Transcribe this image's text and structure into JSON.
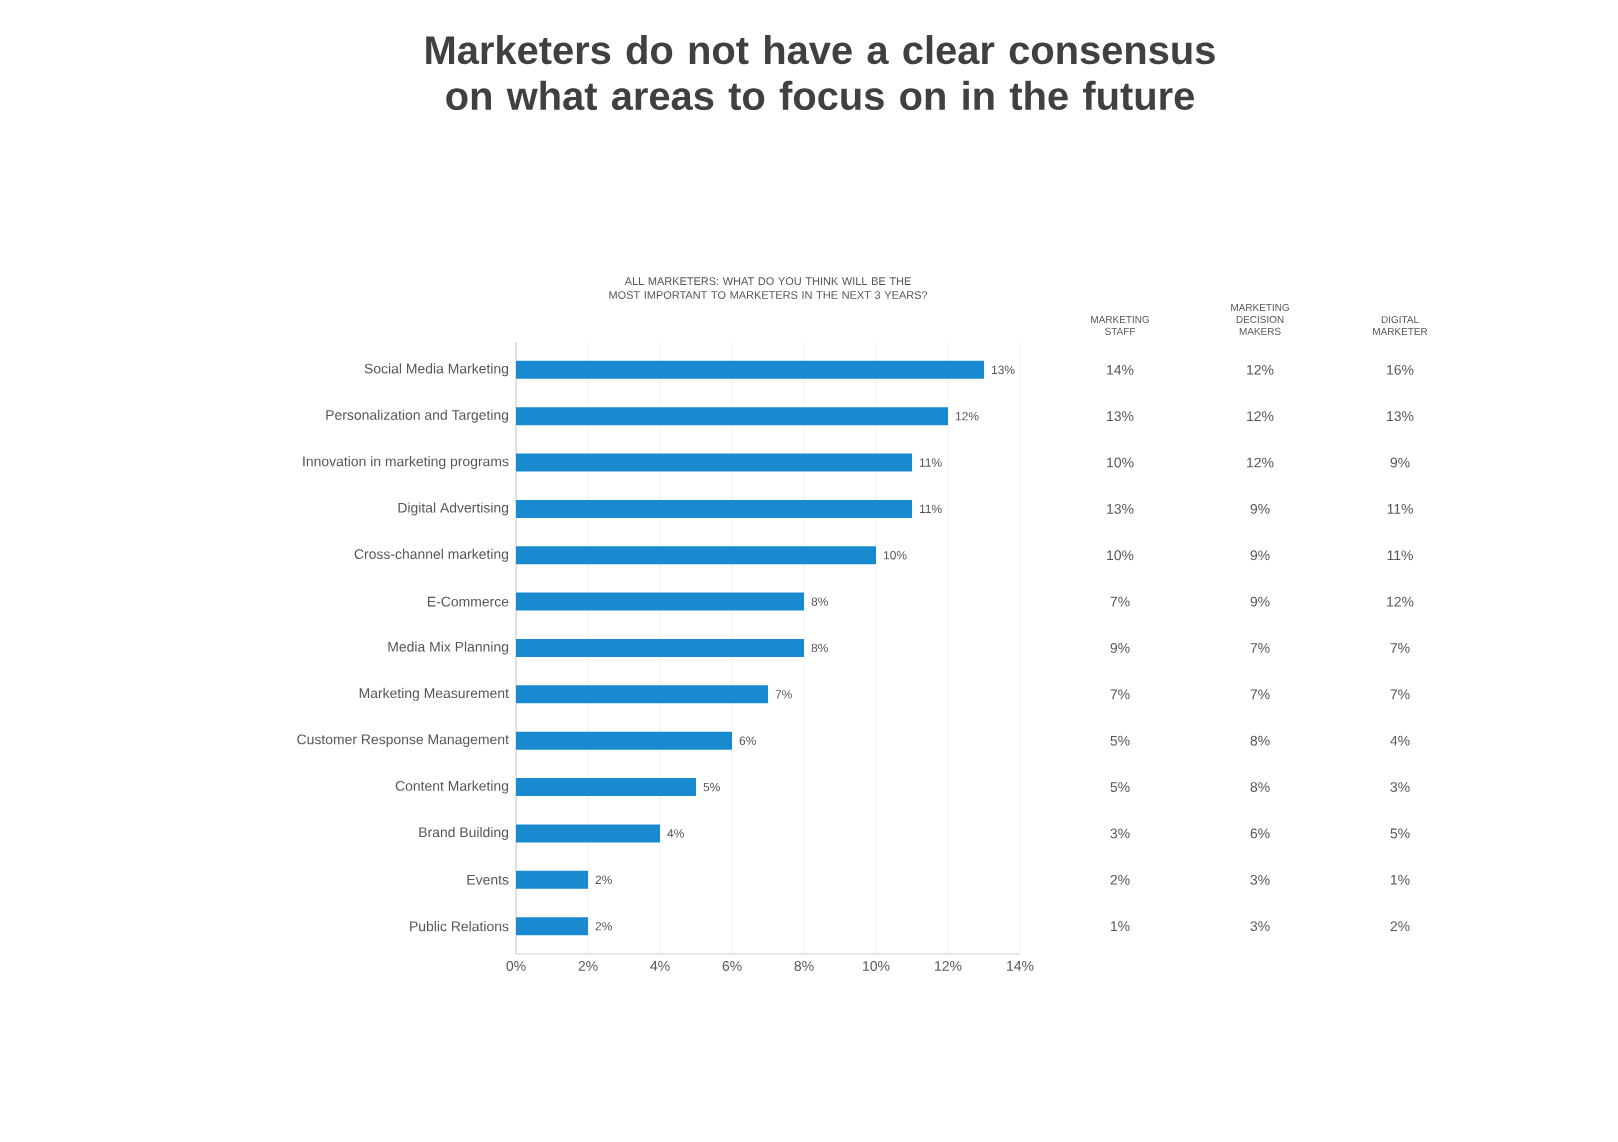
{
  "chart_data": [
    {
      "type": "bar",
      "orientation": "horizontal",
      "title": "Marketers do not have a clear consensus on what areas to focus on in the future",
      "subtitle": "ALL MARKETERS: WHAT DO YOU THINK WILL BE THE MOST IMPORTANT TO MARKETERS IN THE NEXT 3 YEARS?",
      "categories": [
        "Social Media Marketing",
        "Personalization and Targeting",
        "Innovation in marketing programs",
        "Digital Advertising",
        "Cross-channel marketing",
        "E-Commerce",
        "Media Mix Planning",
        "Marketing Measurement",
        "Customer Response Management",
        "Content Marketing",
        "Brand Building",
        "Events",
        "Public Relations"
      ],
      "values": [
        13,
        12,
        11,
        11,
        10,
        8,
        8,
        7,
        6,
        5,
        4,
        2,
        2
      ],
      "value_labels": [
        "13%",
        "12%",
        "11%",
        "11%",
        "10%",
        "8%",
        "8%",
        "7%",
        "6%",
        "5%",
        "4%",
        "2%",
        "2%"
      ],
      "color": "#1a8ad0",
      "xlim": [
        0,
        14
      ],
      "xticks": [
        {
          "value": 0,
          "label": "0%"
        },
        {
          "value": 2,
          "label": "2%"
        },
        {
          "value": 4,
          "label": "4%"
        },
        {
          "value": 6,
          "label": "6%"
        },
        {
          "value": 8,
          "label": "8%"
        },
        {
          "value": 10,
          "label": "10%"
        },
        {
          "value": 12,
          "label": "12%"
        },
        {
          "value": 14,
          "label": "14%"
        }
      ],
      "grid": "x"
    },
    {
      "type": "other",
      "categories": [
        "MARKETING STAFF",
        "MARKETING DECISION MAKERS",
        "DIGITAL MARKETER"
      ],
      "cell_labels": [
        [
          "14%",
          "12%",
          "16%"
        ],
        [
          "13%",
          "12%",
          "13%"
        ],
        [
          "10%",
          "12%",
          "9%"
        ],
        [
          "13%",
          "9%",
          "11%"
        ],
        [
          "10%",
          "9%",
          "11%"
        ],
        [
          "7%",
          "9%",
          "12%"
        ],
        [
          "9%",
          "7%",
          "7%"
        ],
        [
          "7%",
          "7%",
          "7%"
        ],
        [
          "5%",
          "8%",
          "4%"
        ],
        [
          "5%",
          "8%",
          "3%"
        ],
        [
          "3%",
          "6%",
          "5%"
        ],
        [
          "2%",
          "3%",
          "1%"
        ],
        [
          "1%",
          "3%",
          "2%"
        ]
      ]
    }
  ]
}
